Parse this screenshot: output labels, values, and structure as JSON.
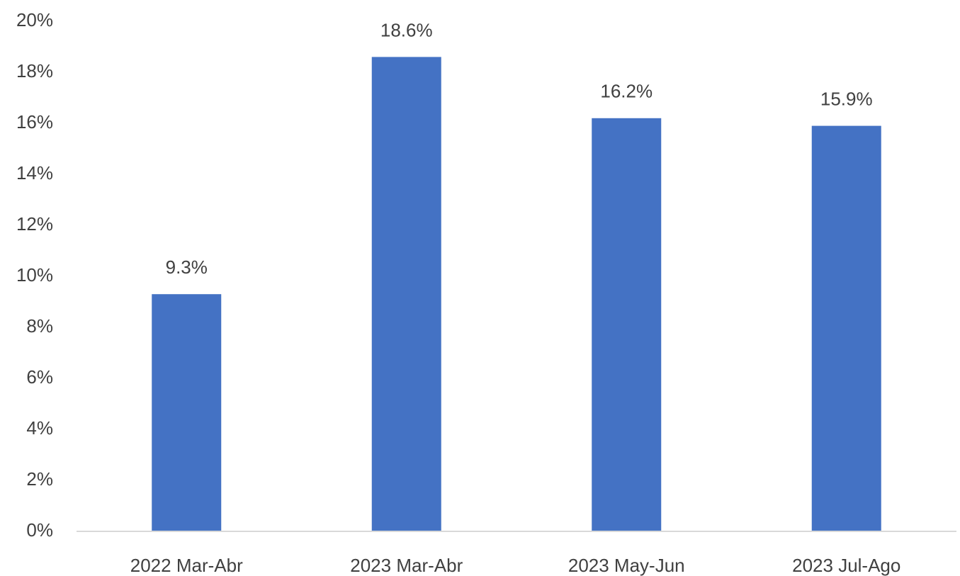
{
  "chart_data": {
    "type": "bar",
    "categories": [
      "2022 Mar-Abr",
      "2023 Mar-Abr",
      "2023 May-Jun",
      "2023 Jul-Ago"
    ],
    "values": [
      9.3,
      18.6,
      16.2,
      15.9
    ],
    "value_labels": [
      "9.3%",
      "18.6%",
      "16.2%",
      "15.9%"
    ],
    "color": "#4472c4",
    "ylim": [
      0,
      20
    ],
    "yticks": [
      {
        "value": 0,
        "label": "0%"
      },
      {
        "value": 2,
        "label": "2%"
      },
      {
        "value": 4,
        "label": "4%"
      },
      {
        "value": 6,
        "label": "6%"
      },
      {
        "value": 8,
        "label": "8%"
      },
      {
        "value": 10,
        "label": "10%"
      },
      {
        "value": 12,
        "label": "12%"
      },
      {
        "value": 14,
        "label": "14%"
      },
      {
        "value": 16,
        "label": "16%"
      },
      {
        "value": 18,
        "label": "18%"
      },
      {
        "value": 20,
        "label": "20%"
      }
    ],
    "grid": false
  }
}
